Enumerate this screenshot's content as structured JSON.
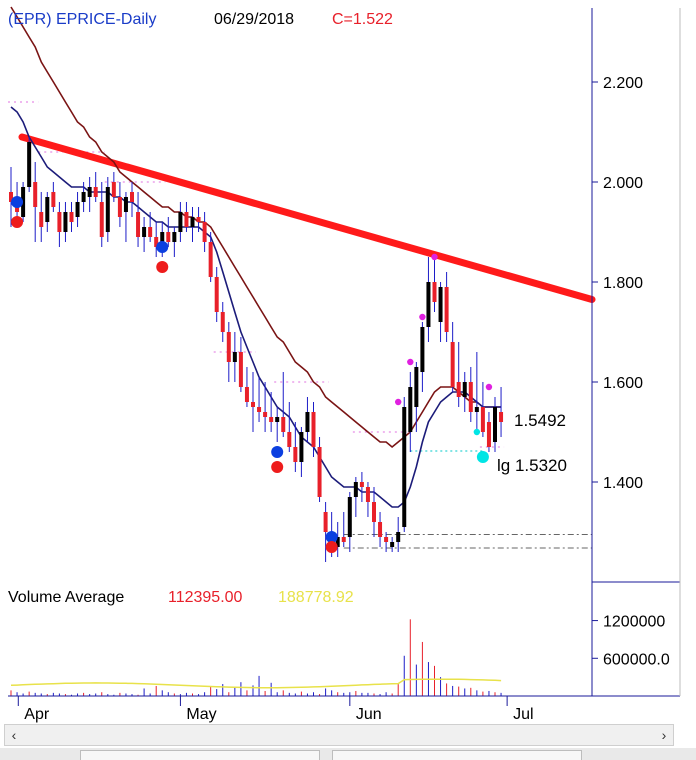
{
  "header": {
    "symbol": "(EPR) EPRICE-Daily",
    "date": "06/29/2018",
    "close_label": "C=1.522"
  },
  "volume_header": {
    "title": "Volume Average",
    "value_red": "112395.00",
    "value_yellow": "188778.92"
  },
  "colors": {
    "up": "#000000",
    "down": "#e8202a",
    "wick": "#1c1cc8",
    "ma_fast": "#1c1c7a",
    "ma_slow": "#7a1414",
    "trend": "#ff1a1a",
    "blue_dot": "#0b3fe0",
    "red_dot": "#ee1c1c",
    "magenta_dot": "#e020e0",
    "cyan_dot": "#00e5e5",
    "volume_avg_yellow": "#e8e24a"
  },
  "chart_data": [
    {
      "type": "candlestick",
      "title": "(EPR) EPRICE-Daily",
      "y_ticks": [
        "1.400",
        "1.600",
        "1.800",
        "2.000",
        "2.200"
      ],
      "ylim": [
        1.22,
        2.37
      ],
      "x_ticks": [
        "Apr",
        "May",
        "Jun",
        "Jul"
      ],
      "annotations": [
        {
          "label": "1.5492",
          "price": 1.5492
        },
        {
          "label": "lg 1.5320",
          "price": 1.532
        }
      ],
      "trend_line": {
        "start_price": 2.09,
        "end_price": 1.765
      },
      "candles": [
        [
          1.98,
          2.03,
          1.91,
          1.96
        ],
        [
          1.96,
          2.0,
          1.92,
          1.94
        ],
        [
          1.93,
          2.0,
          1.92,
          1.99
        ],
        [
          1.99,
          2.09,
          1.98,
          2.08
        ],
        [
          2.0,
          2.04,
          1.88,
          1.95
        ],
        [
          1.94,
          1.98,
          1.88,
          1.91
        ],
        [
          1.92,
          1.98,
          1.9,
          1.97
        ],
        [
          1.98,
          2.0,
          1.94,
          1.95
        ],
        [
          1.94,
          1.96,
          1.87,
          1.9
        ],
        [
          1.9,
          1.96,
          1.88,
          1.94
        ],
        [
          1.94,
          1.96,
          1.9,
          1.92
        ],
        [
          1.93,
          1.98,
          1.91,
          1.96
        ],
        [
          1.96,
          2.0,
          1.94,
          1.98
        ],
        [
          1.97,
          2.01,
          1.94,
          1.99
        ],
        [
          1.99,
          2.02,
          1.96,
          1.97
        ],
        [
          1.96,
          2.0,
          1.87,
          1.89
        ],
        [
          1.9,
          2.01,
          1.88,
          1.99
        ],
        [
          2.0,
          2.02,
          1.96,
          1.97
        ],
        [
          1.97,
          2.0,
          1.91,
          1.93
        ],
        [
          1.94,
          1.98,
          1.88,
          1.97
        ],
        [
          1.98,
          2.0,
          1.93,
          1.96
        ],
        [
          1.94,
          1.98,
          1.87,
          1.89
        ],
        [
          1.89,
          1.93,
          1.86,
          1.91
        ],
        [
          1.91,
          1.94,
          1.88,
          1.89
        ],
        [
          1.89,
          1.92,
          1.85,
          1.87
        ],
        [
          1.87,
          1.92,
          1.85,
          1.9
        ],
        [
          1.9,
          1.93,
          1.87,
          1.88
        ],
        [
          1.88,
          1.91,
          1.85,
          1.9
        ],
        [
          1.9,
          1.96,
          1.88,
          1.94
        ],
        [
          1.94,
          1.96,
          1.9,
          1.91
        ],
        [
          1.91,
          1.95,
          1.88,
          1.93
        ],
        [
          1.93,
          1.95,
          1.9,
          1.92
        ],
        [
          1.92,
          1.94,
          1.86,
          1.88
        ],
        [
          1.88,
          1.9,
          1.8,
          1.81
        ],
        [
          1.81,
          1.83,
          1.72,
          1.74
        ],
        [
          1.74,
          1.76,
          1.68,
          1.7
        ],
        [
          1.7,
          1.72,
          1.6,
          1.64
        ],
        [
          1.64,
          1.7,
          1.6,
          1.66
        ],
        [
          1.66,
          1.69,
          1.58,
          1.59
        ],
        [
          1.59,
          1.63,
          1.55,
          1.56
        ],
        [
          1.56,
          1.62,
          1.5,
          1.55
        ],
        [
          1.55,
          1.61,
          1.52,
          1.54
        ],
        [
          1.54,
          1.6,
          1.5,
          1.53
        ],
        [
          1.53,
          1.58,
          1.5,
          1.52
        ],
        [
          1.52,
          1.55,
          1.48,
          1.53
        ],
        [
          1.53,
          1.62,
          1.49,
          1.5
        ],
        [
          1.5,
          1.56,
          1.46,
          1.47
        ],
        [
          1.47,
          1.52,
          1.42,
          1.44
        ],
        [
          1.44,
          1.51,
          1.41,
          1.5
        ],
        [
          1.5,
          1.57,
          1.48,
          1.54
        ],
        [
          1.54,
          1.56,
          1.45,
          1.47
        ],
        [
          1.47,
          1.49,
          1.36,
          1.37
        ],
        [
          1.34,
          1.36,
          1.24,
          1.3
        ],
        [
          1.3,
          1.34,
          1.25,
          1.27
        ],
        [
          1.27,
          1.32,
          1.25,
          1.29
        ],
        [
          1.29,
          1.34,
          1.27,
          1.28
        ],
        [
          1.29,
          1.38,
          1.26,
          1.37
        ],
        [
          1.37,
          1.41,
          1.33,
          1.4
        ],
        [
          1.4,
          1.42,
          1.36,
          1.39
        ],
        [
          1.39,
          1.4,
          1.33,
          1.36
        ],
        [
          1.36,
          1.39,
          1.29,
          1.32
        ],
        [
          1.32,
          1.34,
          1.27,
          1.29
        ],
        [
          1.29,
          1.3,
          1.26,
          1.28
        ],
        [
          1.27,
          1.29,
          1.26,
          1.28
        ],
        [
          1.28,
          1.33,
          1.26,
          1.3
        ],
        [
          1.31,
          1.57,
          1.3,
          1.55
        ],
        [
          1.5,
          1.62,
          1.46,
          1.59
        ],
        [
          1.55,
          1.64,
          1.5,
          1.63
        ],
        [
          1.62,
          1.72,
          1.58,
          1.71
        ],
        [
          1.71,
          1.85,
          1.68,
          1.8
        ],
        [
          1.8,
          1.85,
          1.74,
          1.76
        ],
        [
          1.72,
          1.8,
          1.68,
          1.79
        ],
        [
          1.79,
          1.82,
          1.68,
          1.7
        ],
        [
          1.68,
          1.72,
          1.58,
          1.59
        ],
        [
          1.6,
          1.68,
          1.55,
          1.57
        ],
        [
          1.57,
          1.62,
          1.54,
          1.6
        ],
        [
          1.6,
          1.63,
          1.52,
          1.54
        ],
        [
          1.54,
          1.66,
          1.5,
          1.55
        ],
        [
          1.55,
          1.6,
          1.49,
          1.5
        ],
        [
          1.52,
          1.54,
          1.46,
          1.47
        ],
        [
          1.48,
          1.57,
          1.46,
          1.55
        ],
        [
          1.54,
          1.59,
          1.49,
          1.52
        ]
      ],
      "ma_fast": [
        2.15,
        2.14,
        2.12,
        2.09,
        2.07,
        2.05,
        2.03,
        2.02,
        2.01,
        2.0,
        1.99,
        1.99,
        1.99,
        1.98,
        1.98,
        1.98,
        1.98,
        1.97,
        1.97,
        1.96,
        1.96,
        1.95,
        1.94,
        1.93,
        1.92,
        1.92,
        1.91,
        1.91,
        1.91,
        1.91,
        1.91,
        1.91,
        1.9,
        1.89,
        1.86,
        1.82,
        1.78,
        1.74,
        1.7,
        1.67,
        1.64,
        1.61,
        1.59,
        1.57,
        1.55,
        1.54,
        1.53,
        1.51,
        1.49,
        1.48,
        1.47,
        1.45,
        1.43,
        1.41,
        1.4,
        1.39,
        1.39,
        1.39,
        1.38,
        1.38,
        1.38,
        1.37,
        1.36,
        1.35,
        1.35,
        1.36,
        1.39,
        1.43,
        1.48,
        1.52,
        1.54,
        1.56,
        1.57,
        1.58,
        1.58,
        1.58,
        1.57,
        1.56,
        1.55,
        1.55,
        1.55,
        1.55
      ],
      "ma_slow": [
        2.35,
        2.33,
        2.31,
        2.29,
        2.27,
        2.24,
        2.22,
        2.2,
        2.18,
        2.16,
        2.14,
        2.12,
        2.11,
        2.09,
        2.08,
        2.06,
        2.05,
        2.04,
        2.02,
        2.01,
        2.0,
        1.99,
        1.98,
        1.97,
        1.96,
        1.95,
        1.95,
        1.94,
        1.94,
        1.93,
        1.93,
        1.92,
        1.92,
        1.91,
        1.89,
        1.87,
        1.85,
        1.83,
        1.81,
        1.79,
        1.77,
        1.75,
        1.73,
        1.71,
        1.69,
        1.68,
        1.66,
        1.64,
        1.63,
        1.62,
        1.6,
        1.59,
        1.57,
        1.56,
        1.55,
        1.54,
        1.53,
        1.52,
        1.51,
        1.5,
        1.49,
        1.48,
        1.48,
        1.47,
        1.48,
        1.49,
        1.5,
        1.52,
        1.54,
        1.56,
        1.58,
        1.59,
        1.59,
        1.59,
        1.58,
        1.57,
        1.56,
        1.56,
        1.55,
        1.55,
        1.55,
        1.55
      ],
      "dotted_levels": [
        {
          "from": 0,
          "to": 4,
          "price": 2.16
        },
        {
          "from": 5,
          "to": 15,
          "price": 2.06
        },
        {
          "from": 16,
          "to": 25,
          "price": 2.0
        },
        {
          "from": 34,
          "to": 40,
          "price": 1.66
        },
        {
          "from": 44,
          "to": 52,
          "price": 1.6
        },
        {
          "from": 57,
          "to": 65,
          "price": 1.5
        },
        {
          "from": 78,
          "to": 81,
          "price": 1.47
        }
      ],
      "markers": [
        {
          "i": 1,
          "price": 1.96,
          "kind": "blue"
        },
        {
          "i": 1,
          "price": 1.92,
          "kind": "red"
        },
        {
          "i": 25,
          "price": 1.87,
          "kind": "blue"
        },
        {
          "i": 25,
          "price": 1.83,
          "kind": "red"
        },
        {
          "i": 44,
          "price": 1.46,
          "kind": "blue"
        },
        {
          "i": 44,
          "price": 1.43,
          "kind": "red"
        },
        {
          "i": 53,
          "price": 1.29,
          "kind": "blue"
        },
        {
          "i": 53,
          "price": 1.27,
          "kind": "red"
        },
        {
          "i": 64,
          "price": 1.56,
          "kind": "magenta"
        },
        {
          "i": 66,
          "price": 1.64,
          "kind": "magenta"
        },
        {
          "i": 68,
          "price": 1.73,
          "kind": "magenta"
        },
        {
          "i": 70,
          "price": 1.85,
          "kind": "magenta"
        },
        {
          "i": 79,
          "price": 1.59,
          "kind": "magenta"
        },
        {
          "i": 77,
          "price": 1.5,
          "kind": "cyan"
        },
        {
          "i": 78,
          "price": 1.45,
          "kind": "cyan"
        }
      ]
    },
    {
      "type": "bar",
      "title": "Volume Average",
      "y_ticks": [
        "600000.0",
        "1200000"
      ],
      "ylim": [
        0,
        1400000
      ],
      "values": [
        90000,
        60000,
        40000,
        70000,
        50000,
        40000,
        30000,
        50000,
        40000,
        30000,
        20000,
        40000,
        50000,
        30000,
        40000,
        60000,
        30000,
        20000,
        50000,
        40000,
        30000,
        20000,
        120000,
        40000,
        160000,
        90000,
        60000,
        40000,
        30000,
        50000,
        40000,
        30000,
        60000,
        150000,
        110000,
        190000,
        60000,
        140000,
        220000,
        90000,
        170000,
        320000,
        80000,
        210000,
        60000,
        90000,
        50000,
        40000,
        70000,
        40000,
        60000,
        30000,
        120000,
        90000,
        60000,
        50000,
        60000,
        80000,
        50000,
        50000,
        40000,
        30000,
        60000,
        40000,
        200000,
        640000,
        1220000,
        500000,
        860000,
        540000,
        480000,
        300000,
        200000,
        160000,
        150000,
        120000,
        130000,
        90000,
        70000,
        80000,
        60000,
        50000
      ],
      "avg_yellow": 188778.92
    }
  ]
}
